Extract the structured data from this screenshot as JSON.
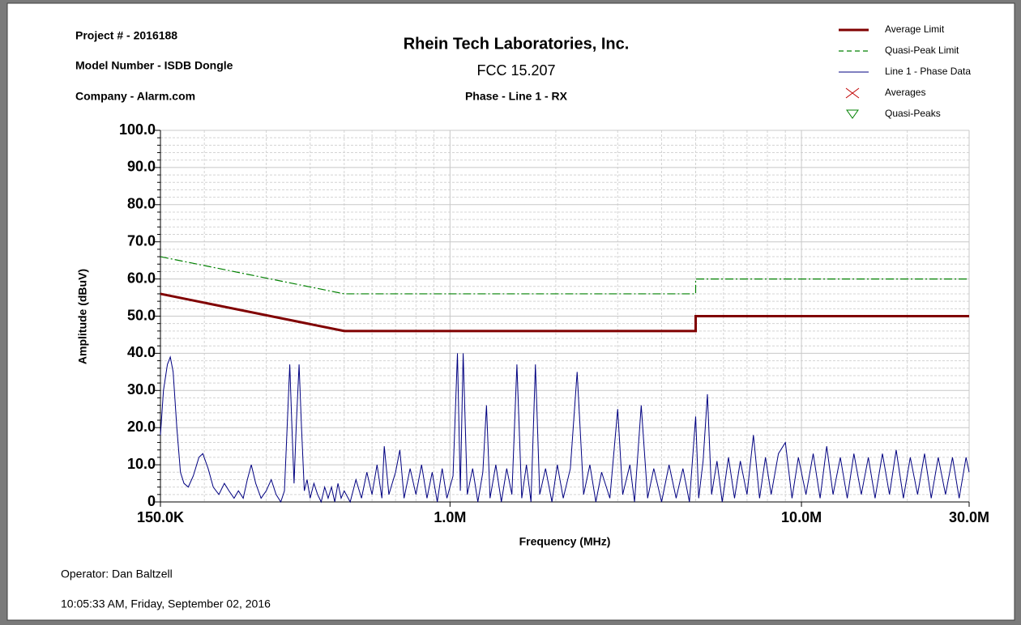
{
  "header": {
    "project": "Project # - 2016188",
    "model": "Model Number - ISDB Dongle",
    "company": "Company - Alarm.com"
  },
  "footer": {
    "operator": "Operator: Dan Baltzell",
    "timestamp": "10:05:33 AM, Friday, September 02, 2016"
  },
  "chart_data": {
    "type": "line",
    "title": "Rhein Tech Laboratories, Inc.",
    "subtitle": "FCC 15.207",
    "subtitle2": "Phase - Line 1 - RX",
    "xlabel": "Frequency (MHz)",
    "ylabel": "Amplitude (dBuV)",
    "xscale": "log",
    "grid": true,
    "legend": "top-right",
    "xlim": [
      0.15,
      30
    ],
    "ylim": [
      0,
      100
    ],
    "xticks": [
      {
        "value": 0.15,
        "label": "150.0K"
      },
      {
        "value": 1,
        "label": "1.0M"
      },
      {
        "value": 10,
        "label": "10.0M"
      },
      {
        "value": 30,
        "label": "30.0M"
      }
    ],
    "xminor": [
      0.2,
      0.3,
      0.4,
      0.5,
      0.6,
      0.7,
      0.8,
      0.9,
      2,
      3,
      4,
      5,
      6,
      7,
      8,
      9,
      20
    ],
    "yticks": [
      0,
      {
        "value": 10,
        "label": "10.0"
      },
      {
        "value": 20,
        "label": "20.0"
      },
      {
        "value": 30,
        "label": "30.0"
      },
      {
        "value": 40,
        "label": "40.0"
      },
      {
        "value": 50,
        "label": "50.0"
      },
      {
        "value": 60,
        "label": "60.0"
      },
      {
        "value": 70,
        "label": "70.0"
      },
      {
        "value": 80,
        "label": "80.0"
      },
      {
        "value": 90,
        "label": "90.0"
      },
      {
        "value": 100,
        "label": "100.0"
      }
    ],
    "yminor": [
      2,
      4,
      6,
      8,
      12,
      14,
      16,
      18,
      22,
      24,
      26,
      28,
      32,
      34,
      36,
      38,
      42,
      44,
      46,
      48,
      52,
      54,
      56,
      58,
      62,
      64,
      66,
      68,
      72,
      74,
      76,
      78,
      82,
      84,
      86,
      88,
      92,
      94,
      96,
      98
    ],
    "series": [
      {
        "name": "Average Limit",
        "color": "#800000",
        "style": "solid",
        "x": [
          0.15,
          0.5,
          5,
          5,
          30
        ],
        "values": [
          56,
          46,
          46,
          50,
          50
        ]
      },
      {
        "name": "Quasi-Peak Limit",
        "color": "#008000",
        "style": "dashdot",
        "x": [
          0.15,
          0.5,
          5,
          5,
          30
        ],
        "values": [
          66,
          56,
          56,
          60,
          60
        ]
      },
      {
        "name": "Line 1 - Phase Data",
        "color": "#000080",
        "style": "thin",
        "x": [
          0.15,
          0.153,
          0.157,
          0.16,
          0.163,
          0.167,
          0.171,
          0.175,
          0.18,
          0.186,
          0.193,
          0.198,
          0.205,
          0.212,
          0.22,
          0.228,
          0.235,
          0.243,
          0.25,
          0.258,
          0.265,
          0.272,
          0.28,
          0.29,
          0.3,
          0.31,
          0.32,
          0.33,
          0.338,
          0.344,
          0.35,
          0.355,
          0.36,
          0.365,
          0.372,
          0.378,
          0.385,
          0.392,
          0.4,
          0.41,
          0.42,
          0.43,
          0.44,
          0.45,
          0.46,
          0.47,
          0.48,
          0.49,
          0.5,
          0.52,
          0.54,
          0.56,
          0.58,
          0.6,
          0.62,
          0.64,
          0.65,
          0.67,
          0.7,
          0.72,
          0.74,
          0.77,
          0.8,
          0.83,
          0.86,
          0.89,
          0.92,
          0.95,
          0.98,
          1.02,
          1.05,
          1.07,
          1.09,
          1.12,
          1.16,
          1.2,
          1.24,
          1.27,
          1.3,
          1.35,
          1.4,
          1.45,
          1.5,
          1.55,
          1.6,
          1.65,
          1.7,
          1.75,
          1.8,
          1.87,
          1.95,
          2.02,
          2.1,
          2.2,
          2.3,
          2.4,
          2.5,
          2.6,
          2.7,
          2.85,
          3.0,
          3.1,
          3.25,
          3.35,
          3.5,
          3.65,
          3.8,
          4.0,
          4.2,
          4.4,
          4.6,
          4.8,
          5.0,
          5.1,
          5.25,
          5.4,
          5.55,
          5.75,
          5.95,
          6.2,
          6.45,
          6.7,
          7.0,
          7.3,
          7.6,
          7.9,
          8.2,
          8.6,
          9.0,
          9.4,
          9.8,
          10.3,
          10.8,
          11.3,
          11.8,
          12.3,
          12.9,
          13.5,
          14.1,
          14.8,
          15.5,
          16.2,
          17.0,
          17.8,
          18.6,
          19.5,
          20.4,
          21.4,
          22.4,
          23.4,
          24.5,
          25.7,
          26.9,
          28.1,
          29.4,
          30
        ],
        "values": [
          18,
          30,
          37,
          39,
          35,
          20,
          8,
          5,
          4,
          7,
          12,
          13,
          9,
          4,
          2,
          5,
          3,
          1,
          3,
          1,
          6,
          10,
          5,
          1,
          3,
          6,
          2,
          0,
          3,
          20,
          37,
          20,
          5,
          20,
          37,
          20,
          3,
          6,
          1,
          5,
          2,
          0,
          4,
          1,
          4,
          0,
          5,
          1,
          3,
          0,
          6,
          1,
          8,
          2,
          10,
          1,
          15,
          2,
          8,
          14,
          1,
          9,
          2,
          10,
          1,
          8,
          0,
          9,
          1,
          7,
          40,
          3,
          40,
          2,
          9,
          0,
          8,
          26,
          1,
          10,
          0,
          9,
          2,
          37,
          1,
          10,
          0,
          37,
          2,
          9,
          0,
          10,
          1,
          9,
          35,
          2,
          10,
          0,
          8,
          1,
          25,
          2,
          10,
          0,
          26,
          1,
          9,
          0,
          10,
          1,
          9,
          0,
          23,
          1,
          11,
          29,
          2,
          11,
          0,
          12,
          1,
          11,
          2,
          18,
          1,
          12,
          2,
          13,
          16,
          1,
          12,
          2,
          13,
          1,
          15,
          2,
          12,
          1,
          13,
          2,
          12,
          1,
          13,
          2,
          14,
          1,
          12,
          2,
          13,
          1,
          12,
          2,
          12,
          1,
          12,
          8
        ]
      },
      {
        "name": "Averages",
        "color": "#c00000",
        "marker": "x",
        "x": [],
        "values": []
      },
      {
        "name": "Quasi-Peaks",
        "color": "#008000",
        "marker": "triangle",
        "x": [],
        "values": []
      }
    ]
  }
}
